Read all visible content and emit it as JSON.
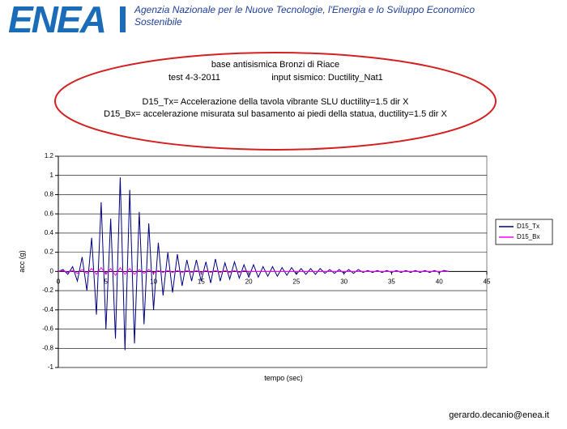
{
  "page": {
    "logo": "ENEA",
    "org_line1": "Agenzia Nazionale per le Nuove Tecnologie, l'Energia e lo Sviluppo Economico",
    "org_line2": "Sostenibile",
    "email": "gerardo.decanio@enea.it"
  },
  "chart_data": {
    "type": "line",
    "title": "base antisismica Bronzi di Riace",
    "subtitle": [
      "test 4-3-2011",
      "input sismico: Ductility_Nat1"
    ],
    "annotation": [
      "D15_Tx= Accelerazione della tavola vibrante  SLU ductility=1.5  dir X",
      "D15_Bx= accelerazione misurata sul basamento ai piedi della statua,  ductility=1.5 dir X"
    ],
    "x_label": "tempo (sec)",
    "y_label": "acc (g)",
    "xlim": [
      0,
      45
    ],
    "xticks": [
      0,
      5,
      10,
      15,
      20,
      25,
      30,
      35,
      40,
      45
    ],
    "ylim": [
      -1,
      1.2
    ],
    "yticks": [
      -1,
      -0.8,
      -0.6,
      -0.4,
      -0.2,
      0,
      0.2,
      0.4,
      0.6,
      0.8,
      1,
      1.2
    ],
    "grid": true,
    "legend": "right",
    "x": [
      0,
      0.5,
      1,
      1.5,
      2,
      2.5,
      3,
      3.5,
      4,
      4.5,
      5,
      5.5,
      6,
      6.5,
      7,
      7.5,
      8,
      8.5,
      9,
      9.5,
      10,
      10.5,
      11,
      11.5,
      12,
      12.5,
      13,
      13.5,
      14,
      14.5,
      15,
      15.5,
      16,
      16.5,
      17,
      17.5,
      18,
      18.5,
      19,
      19.5,
      20,
      20.5,
      21,
      21.5,
      22,
      22.5,
      23,
      23.5,
      24,
      24.5,
      25,
      25.5,
      26,
      26.5,
      27,
      27.5,
      28,
      28.5,
      29,
      29.5,
      30,
      30.5,
      31,
      31.5,
      32,
      32.5,
      33,
      33.5,
      34,
      34.5,
      35,
      35.5,
      36,
      36.5,
      37,
      37.5,
      38,
      38.5,
      39,
      39.5,
      40,
      40.5,
      41
    ],
    "series": [
      {
        "name": "D15_Tx",
        "color": "#000080",
        "values": [
          0,
          0.02,
          -0.03,
          0.05,
          -0.1,
          0.15,
          -0.2,
          0.35,
          -0.45,
          0.72,
          -0.6,
          0.55,
          -0.7,
          0.98,
          -0.82,
          0.85,
          -0.75,
          0.62,
          -0.55,
          0.5,
          -0.4,
          0.3,
          -0.25,
          0.2,
          -0.22,
          0.18,
          -0.15,
          0.12,
          -0.1,
          0.12,
          -0.1,
          0.1,
          -0.12,
          0.13,
          -0.1,
          0.09,
          -0.08,
          0.1,
          -0.07,
          0.07,
          -0.06,
          0.07,
          -0.06,
          0.05,
          -0.05,
          0.05,
          -0.05,
          0.04,
          -0.04,
          0.04,
          -0.03,
          0.03,
          -0.03,
          0.03,
          -0.03,
          0.03,
          -0.02,
          0.02,
          -0.02,
          0.02,
          -0.02,
          0.02,
          -0.02,
          0.02,
          -0.01,
          0.01,
          -0.01,
          0.01,
          -0.01,
          0.01,
          -0.01,
          0.01,
          -0.01,
          0.01,
          -0.01,
          0.01,
          -0.01,
          0.01,
          -0.01,
          0.01,
          -0.01,
          0.01,
          0
        ]
      },
      {
        "name": "D15_Bx",
        "color": "#ff00ff",
        "values": [
          0,
          0.01,
          -0.01,
          0.01,
          -0.02,
          0.02,
          -0.02,
          0.03,
          -0.03,
          0.04,
          -0.03,
          0.03,
          -0.04,
          0.04,
          -0.03,
          0.03,
          -0.03,
          0.02,
          -0.02,
          0.02,
          -0.02,
          0.01,
          -0.01,
          0.01,
          -0.01,
          0.01,
          -0.01,
          0.01,
          -0.01,
          0.01,
          -0.01,
          0.01,
          -0.01,
          0.01,
          -0.01,
          0.01,
          -0.01,
          0.01,
          -0.01,
          0.01,
          0,
          0,
          0,
          0,
          0,
          0,
          0,
          0,
          0,
          0,
          0,
          0,
          0,
          0,
          0,
          0,
          0,
          0,
          0,
          0,
          0,
          0,
          0,
          0,
          0,
          0,
          0,
          0,
          0,
          0,
          0,
          0,
          0,
          0,
          0,
          0,
          0,
          0,
          0,
          0,
          0,
          0,
          0
        ]
      }
    ]
  }
}
